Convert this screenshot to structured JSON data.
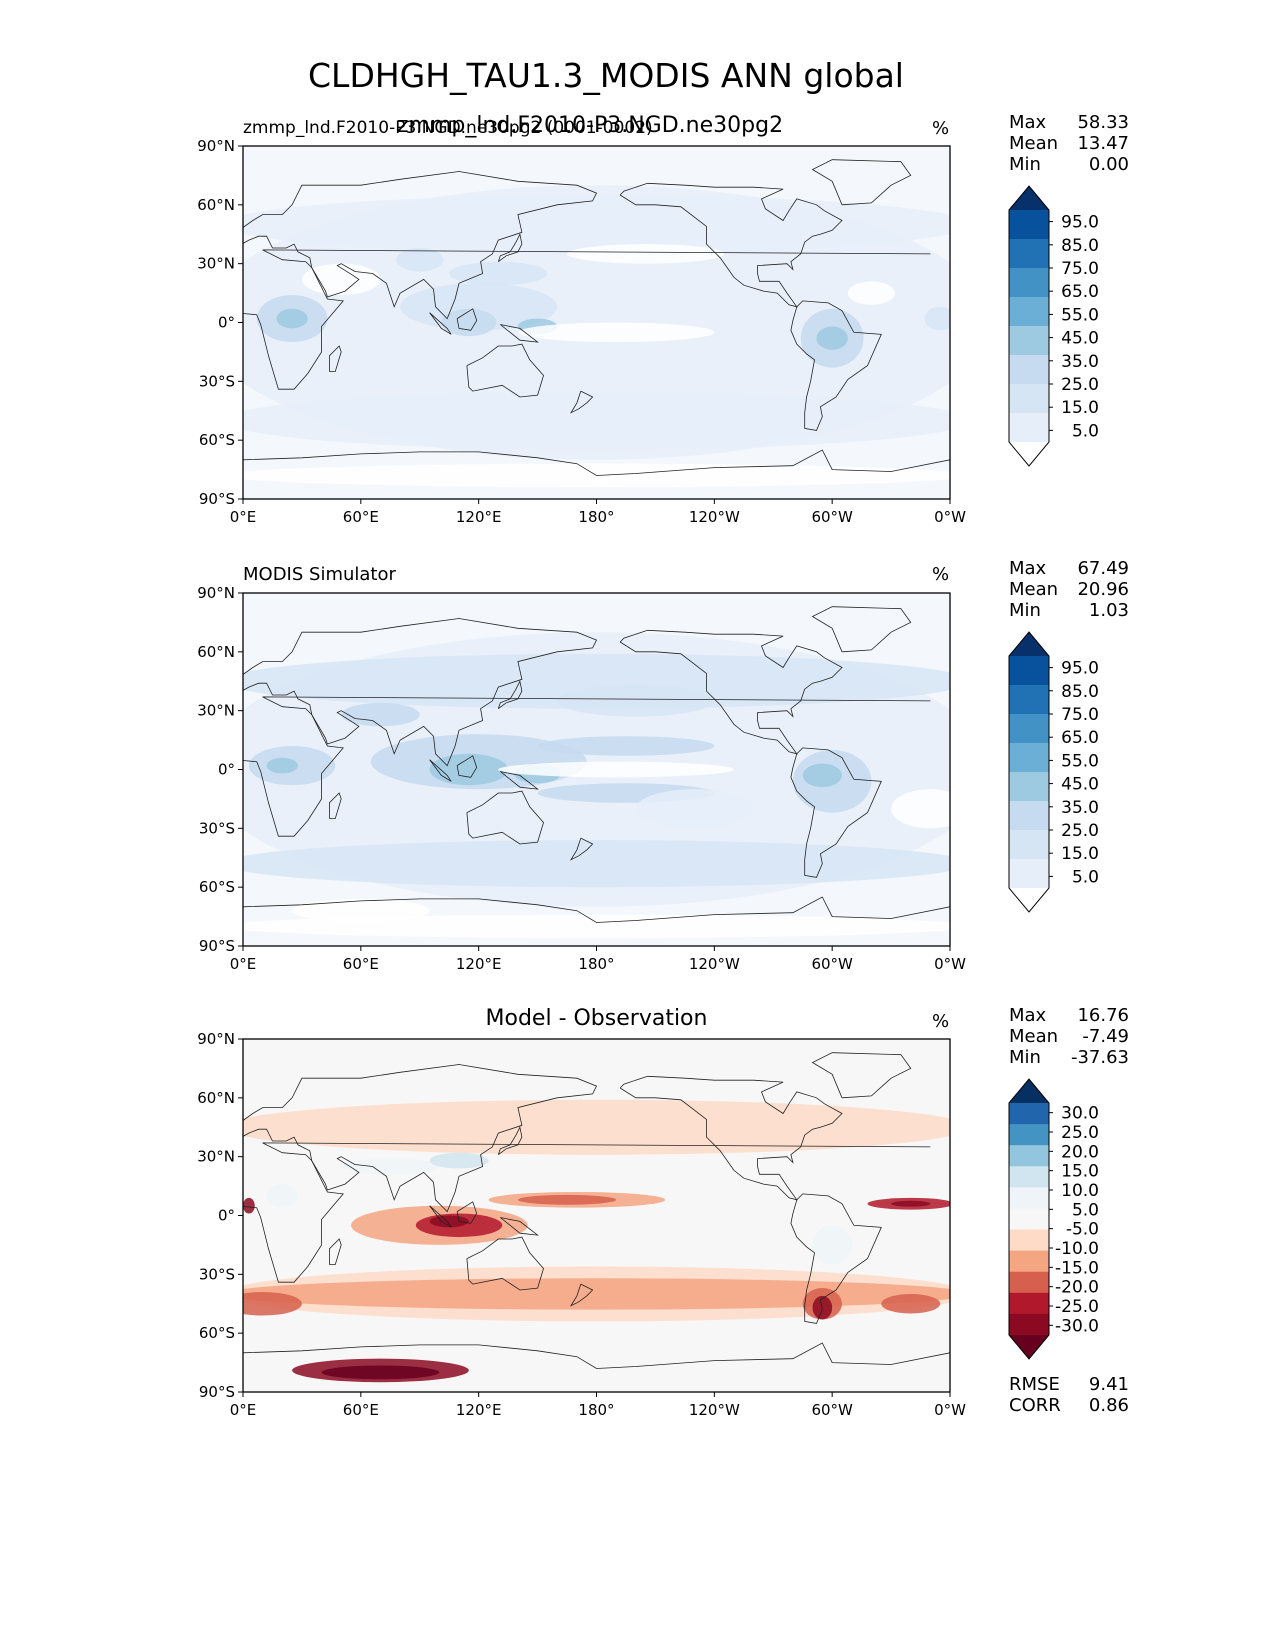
{
  "figure": {
    "title": "CLDHGH_TAU1.3_MODIS ANN global"
  },
  "panels": [
    {
      "id": "test",
      "title_left": "zmmp_lnd.F2010-P3.NGD.ne30pg2 (0001-0002)",
      "title_center_overlap": "zmmp_lnd.F2010-P3.NGD.ne30pg2",
      "units": "%",
      "stats": [
        {
          "label": "Max",
          "value": "58.33"
        },
        {
          "label": "Mean",
          "value": "13.47"
        },
        {
          "label": "Min",
          "value": "0.00"
        }
      ],
      "colorbar": {
        "labels": [
          "95.0",
          "85.0",
          "75.0",
          "65.0",
          "55.0",
          "45.0",
          "35.0",
          "25.0",
          "15.0",
          "5.0"
        ],
        "colors": [
          "#08306b",
          "#08519c",
          "#2171b5",
          "#4292c6",
          "#6baed6",
          "#9ecae1",
          "#c6dbef",
          "#d6e5f4",
          "#e6eff9",
          "#ffffff"
        ]
      }
    },
    {
      "id": "reference",
      "title_left": "MODIS Simulator",
      "units": "%",
      "stats": [
        {
          "label": "Max",
          "value": "67.49"
        },
        {
          "label": "Mean",
          "value": "20.96"
        },
        {
          "label": "Min",
          "value": "1.03"
        }
      ],
      "colorbar": {
        "labels": [
          "95.0",
          "85.0",
          "75.0",
          "65.0",
          "55.0",
          "45.0",
          "35.0",
          "25.0",
          "15.0",
          "5.0"
        ],
        "colors": [
          "#08306b",
          "#08519c",
          "#2171b5",
          "#4292c6",
          "#6baed6",
          "#9ecae1",
          "#c6dbef",
          "#d6e5f4",
          "#e6eff9",
          "#ffffff"
        ]
      }
    },
    {
      "id": "difference",
      "title_center": "Model - Observation",
      "units": "%",
      "stats": [
        {
          "label": "Max",
          "value": "16.76"
        },
        {
          "label": "Mean",
          "value": "-7.49"
        },
        {
          "label": "Min",
          "value": "-37.63"
        }
      ],
      "metrics": [
        {
          "label": "RMSE",
          "value": "9.41"
        },
        {
          "label": "CORR",
          "value": "0.86"
        }
      ],
      "colorbar": {
        "labels": [
          "30.0",
          "25.0",
          "20.0",
          "15.0",
          "10.0",
          "5.0",
          "-5.0",
          "-10.0",
          "-15.0",
          "-20.0",
          "-25.0",
          "-30.0"
        ],
        "colors": [
          "#053061",
          "#2166ac",
          "#4393c3",
          "#92c5de",
          "#d1e5f0",
          "#eef4f8",
          "#f7f7f7",
          "#fddbc7",
          "#f4a582",
          "#d6604d",
          "#b2182b",
          "#8b0a22",
          "#67001f"
        ]
      }
    }
  ],
  "axes": {
    "x_ticks": [
      "0°E",
      "60°E",
      "120°E",
      "180°",
      "120°W",
      "60°W",
      "0°W"
    ],
    "y_ticks": [
      "90°N",
      "60°N",
      "30°N",
      "0°",
      "30°S",
      "60°S",
      "90°S"
    ]
  },
  "chart_data": [
    {
      "type": "heatmap",
      "title": "zmmp_lnd.F2010-P3.NGD.ne30pg2 (0001-0002)",
      "units": "%",
      "x_range": [
        0,
        360
      ],
      "y_range": [
        -90,
        90
      ],
      "levels": [
        5,
        15,
        25,
        35,
        45,
        55,
        65,
        75,
        85,
        95
      ],
      "stats": {
        "max": 58.33,
        "mean": 13.47,
        "min": 0.0
      }
    },
    {
      "type": "heatmap",
      "title": "MODIS Simulator",
      "units": "%",
      "x_range": [
        0,
        360
      ],
      "y_range": [
        -90,
        90
      ],
      "levels": [
        5,
        15,
        25,
        35,
        45,
        55,
        65,
        75,
        85,
        95
      ],
      "stats": {
        "max": 67.49,
        "mean": 20.96,
        "min": 1.03
      }
    },
    {
      "type": "heatmap",
      "title": "Model - Observation",
      "units": "%",
      "x_range": [
        0,
        360
      ],
      "y_range": [
        -90,
        90
      ],
      "levels": [
        -30,
        -25,
        -20,
        -15,
        -10,
        -5,
        5,
        10,
        15,
        20,
        25,
        30
      ],
      "stats": {
        "max": 16.76,
        "mean": -7.49,
        "min": -37.63
      },
      "rmse": 9.41,
      "corr": 0.86
    }
  ]
}
